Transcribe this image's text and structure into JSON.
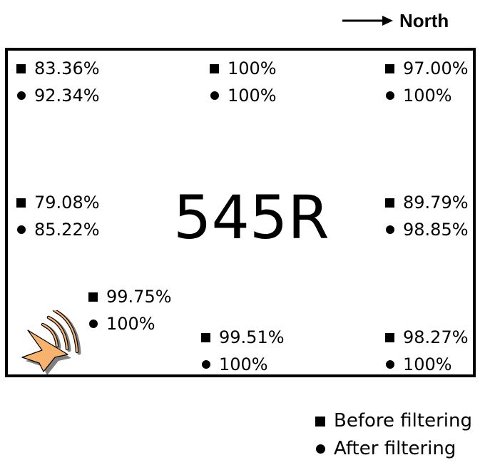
{
  "orientation": {
    "label": "North",
    "arrow_icon": "right-arrow"
  },
  "room": {
    "id": "545R"
  },
  "source_icon": "speaker-icon",
  "marker_colors": {
    "ink": "#000000",
    "speaker_fill": "#F7B26E",
    "speaker_shadow": "#7F7F7F"
  },
  "cells": [
    {
      "position": "top-left",
      "before": "83.36%",
      "after": "92.34%"
    },
    {
      "position": "top-center",
      "before": "100%",
      "after": "100%"
    },
    {
      "position": "top-right",
      "before": "97.00%",
      "after": "100%"
    },
    {
      "position": "middle-left",
      "before": "79.08%",
      "after": "85.22%"
    },
    {
      "position": "middle-right",
      "before": "89.79%",
      "after": "98.85%"
    },
    {
      "position": "lower-left",
      "before": "99.75%",
      "after": "100%"
    },
    {
      "position": "bottom-center",
      "before": "99.51%",
      "after": "100%"
    },
    {
      "position": "bottom-right",
      "before": "98.27%",
      "after": "100%"
    }
  ],
  "legend": {
    "before_label": "Before filtering",
    "after_label": "After filtering"
  }
}
